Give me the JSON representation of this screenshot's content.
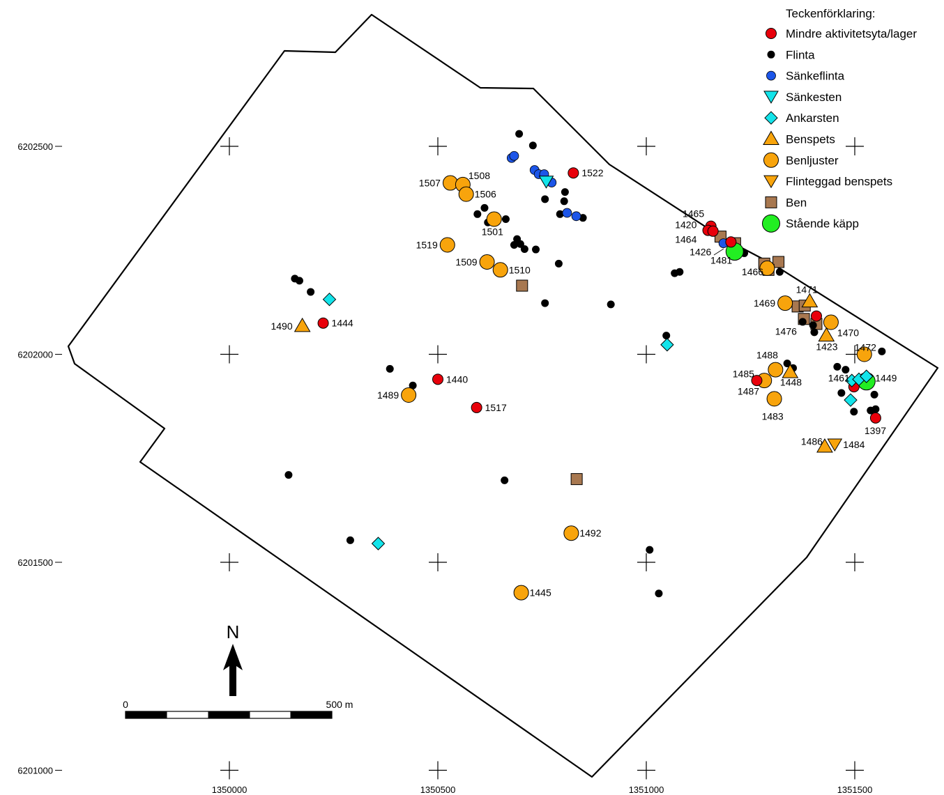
{
  "legend": {
    "title": "Teckenförklaring:",
    "items": [
      {
        "key": "aktivitet",
        "label": "Mindre aktivitetsyta/lager",
        "symbol": "circle",
        "color": "#e8000b"
      },
      {
        "key": "flinta",
        "label": "Flinta",
        "symbol": "dot",
        "color": "#000000"
      },
      {
        "key": "sankeflinta",
        "label": "Sänkeflinta",
        "symbol": "circle-small",
        "color": "#1c55e8"
      },
      {
        "key": "sankesten",
        "label": "Sänkesten",
        "symbol": "triangle-down",
        "color": "#13e4ea"
      },
      {
        "key": "ankarsten",
        "label": "Ankarsten",
        "symbol": "diamond",
        "color": "#13e4ea"
      },
      {
        "key": "benspets",
        "label": "Benspets",
        "symbol": "triangle-up",
        "color": "#f8a40c"
      },
      {
        "key": "benljuster",
        "label": "Benljuster",
        "symbol": "circle-large",
        "color": "#f8a40c"
      },
      {
        "key": "flinteggad",
        "label": "Flinteggad benspets",
        "symbol": "triangle-down",
        "color": "#f8a40c"
      },
      {
        "key": "ben",
        "label": "Ben",
        "symbol": "square",
        "color": "#a87850"
      },
      {
        "key": "kapp",
        "label": "Stående käpp",
        "symbol": "circle-xl",
        "color": "#22ee22"
      }
    ]
  },
  "axes": {
    "x_ticks": [
      "1350000",
      "1350500",
      "1351000",
      "1351500"
    ],
    "y_ticks": [
      "6202500",
      "6202000",
      "6201500",
      "6201000"
    ]
  },
  "north_arrow": {
    "label": "N"
  },
  "scale_bar": {
    "start_label": "0",
    "end_label": "500 m"
  },
  "features": [
    {
      "type": "aktivitet",
      "x": 1350825,
      "y": 6202436,
      "label": "1522"
    },
    {
      "type": "aktivitet",
      "x": 1351155,
      "y": 6202308
    },
    {
      "type": "aktivitet",
      "x": 1351148,
      "y": 6202298
    },
    {
      "type": "aktivitet",
      "x": 1351160,
      "y": 6202296
    },
    {
      "type": "aktivitet",
      "x": 1351203,
      "y": 6202270
    },
    {
      "type": "aktivitet",
      "x": 1350225,
      "y": 6202075,
      "label": "1444"
    },
    {
      "type": "aktivitet",
      "x": 1350500,
      "y": 6201940,
      "label": "1440"
    },
    {
      "type": "aktivitet",
      "x": 1350593,
      "y": 6201872,
      "label": "1517"
    },
    {
      "type": "aktivitet",
      "x": 1351265,
      "y": 6201937
    },
    {
      "type": "aktivitet",
      "x": 1351408,
      "y": 6202092
    },
    {
      "type": "aktivitet",
      "x": 1351498,
      "y": 6201922
    },
    {
      "type": "aktivitet",
      "x": 1351550,
      "y": 6201847,
      "label": "1397"
    },
    {
      "type": "flinta",
      "x": 1350695,
      "y": 6202530
    },
    {
      "type": "flinta",
      "x": 1350728,
      "y": 6202502
    },
    {
      "type": "flinta",
      "x": 1350805,
      "y": 6202390
    },
    {
      "type": "flinta",
      "x": 1350757,
      "y": 6202373
    },
    {
      "type": "flinta",
      "x": 1350803,
      "y": 6202368
    },
    {
      "type": "flinta",
      "x": 1350793,
      "y": 6202337
    },
    {
      "type": "flinta",
      "x": 1350848,
      "y": 6202328
    },
    {
      "type": "flinta",
      "x": 1350612,
      "y": 6202352
    },
    {
      "type": "flinta",
      "x": 1350595,
      "y": 6202337
    },
    {
      "type": "flinta",
      "x": 1350620,
      "y": 6202317
    },
    {
      "type": "flinta",
      "x": 1350663,
      "y": 6202325
    },
    {
      "type": "flinta",
      "x": 1350690,
      "y": 6202277
    },
    {
      "type": "flinta",
      "x": 1350683,
      "y": 6202263
    },
    {
      "type": "flinta",
      "x": 1350698,
      "y": 6202265
    },
    {
      "type": "flinta",
      "x": 1350708,
      "y": 6202253
    },
    {
      "type": "flinta",
      "x": 1350735,
      "y": 6202252
    },
    {
      "type": "flinta",
      "x": 1350790,
      "y": 6202218
    },
    {
      "type": "flinta",
      "x": 1350757,
      "y": 6202123
    },
    {
      "type": "flinta",
      "x": 1350915,
      "y": 6202120
    },
    {
      "type": "flinta",
      "x": 1351068,
      "y": 6202195
    },
    {
      "type": "flinta",
      "x": 1351080,
      "y": 6202198
    },
    {
      "type": "flinta",
      "x": 1350157,
      "y": 6202182
    },
    {
      "type": "flinta",
      "x": 1350168,
      "y": 6202177
    },
    {
      "type": "flinta",
      "x": 1350195,
      "y": 6202150
    },
    {
      "type": "flinta",
      "x": 1350385,
      "y": 6201965
    },
    {
      "type": "flinta",
      "x": 1350440,
      "y": 6201925
    },
    {
      "type": "flinta",
      "x": 1351048,
      "y": 6202045
    },
    {
      "type": "flinta",
      "x": 1351215,
      "y": 6202250
    },
    {
      "type": "flinta",
      "x": 1351235,
      "y": 6202243
    },
    {
      "type": "flinta",
      "x": 1351320,
      "y": 6202198
    },
    {
      "type": "flinta",
      "x": 1351375,
      "y": 6202078
    },
    {
      "type": "flinta",
      "x": 1351400,
      "y": 6202070
    },
    {
      "type": "flinta",
      "x": 1351403,
      "y": 6202053
    },
    {
      "type": "flinta",
      "x": 1351338,
      "y": 6201978
    },
    {
      "type": "flinta",
      "x": 1351352,
      "y": 6201967
    },
    {
      "type": "flinta",
      "x": 1351458,
      "y": 6201970
    },
    {
      "type": "flinta",
      "x": 1351478,
      "y": 6201963
    },
    {
      "type": "flinta",
      "x": 1351468,
      "y": 6201907
    },
    {
      "type": "flinta",
      "x": 1351547,
      "y": 6201903
    },
    {
      "type": "flinta",
      "x": 1351498,
      "y": 6201862
    },
    {
      "type": "flinta",
      "x": 1351538,
      "y": 6201865
    },
    {
      "type": "flinta",
      "x": 1351550,
      "y": 6201868
    },
    {
      "type": "flinta",
      "x": 1351565,
      "y": 6202007
    },
    {
      "type": "flinta",
      "x": 1350142,
      "y": 6201710
    },
    {
      "type": "flinta",
      "x": 1350660,
      "y": 6201697
    },
    {
      "type": "flinta",
      "x": 1350290,
      "y": 6201553
    },
    {
      "type": "flinta",
      "x": 1351008,
      "y": 6201530
    },
    {
      "type": "flinta",
      "x": 1351030,
      "y": 6201425
    },
    {
      "type": "sankeflinta",
      "x": 1350677,
      "y": 6202472
    },
    {
      "type": "sankeflinta",
      "x": 1350683,
      "y": 6202477
    },
    {
      "type": "sankeflinta",
      "x": 1350732,
      "y": 6202443
    },
    {
      "type": "sankeflinta",
      "x": 1350742,
      "y": 6202433
    },
    {
      "type": "sankeflinta",
      "x": 1350755,
      "y": 6202433
    },
    {
      "type": "sankeflinta",
      "x": 1350773,
      "y": 6202413
    },
    {
      "type": "sankeflinta",
      "x": 1350810,
      "y": 6202340
    },
    {
      "type": "sankeflinta",
      "x": 1350832,
      "y": 6202332
    },
    {
      "type": "sankeflinta",
      "x": 1351185,
      "y": 6202267
    },
    {
      "type": "sankesten",
      "x": 1350760,
      "y": 6202415
    },
    {
      "type": "ankarsten",
      "x": 1350240,
      "y": 6202132
    },
    {
      "type": "ankarsten",
      "x": 1351050,
      "y": 6202023
    },
    {
      "type": "ankarsten",
      "x": 1351493,
      "y": 6201937
    },
    {
      "type": "ankarsten",
      "x": 1351510,
      "y": 6201940
    },
    {
      "type": "ankarsten",
      "x": 1351528,
      "y": 6201947
    },
    {
      "type": "ankarsten",
      "x": 1351490,
      "y": 6201890
    },
    {
      "type": "ankarsten",
      "x": 1350357,
      "y": 6201545
    },
    {
      "type": "benspets",
      "x": 1350175,
      "y": 6202068,
      "label": "1490"
    },
    {
      "type": "benspets",
      "x": 1351392,
      "y": 6202127
    },
    {
      "type": "benspets",
      "x": 1351345,
      "y": 6201957
    },
    {
      "type": "benspets",
      "x": 1351432,
      "y": 6202045
    },
    {
      "type": "benspets",
      "x": 1351428,
      "y": 6201778
    },
    {
      "type": "benljuster",
      "x": 1350530,
      "y": 6202412,
      "label": "1507"
    },
    {
      "type": "benljuster",
      "x": 1350560,
      "y": 6202408,
      "label": "1508"
    },
    {
      "type": "benljuster",
      "x": 1350568,
      "y": 6202385,
      "label": "1506"
    },
    {
      "type": "benljuster",
      "x": 1350635,
      "y": 6202325,
      "label": "1501"
    },
    {
      "type": "benljuster",
      "x": 1350523,
      "y": 6202263,
      "label": "1519"
    },
    {
      "type": "benljuster",
      "x": 1350618,
      "y": 6202222,
      "label": "1509"
    },
    {
      "type": "benljuster",
      "x": 1350650,
      "y": 6202203,
      "label": "1510"
    },
    {
      "type": "benljuster",
      "x": 1350430,
      "y": 6201902,
      "label": "1489"
    },
    {
      "type": "benljuster",
      "x": 1351290,
      "y": 6202207
    },
    {
      "type": "benljuster",
      "x": 1351333,
      "y": 6202123,
      "label": "1469"
    },
    {
      "type": "benljuster",
      "x": 1351443,
      "y": 6202077,
      "label": "1470"
    },
    {
      "type": "benljuster",
      "x": 1351523,
      "y": 6202000,
      "label": "1472"
    },
    {
      "type": "benljuster",
      "x": 1351310,
      "y": 6201963
    },
    {
      "type": "benljuster",
      "x": 1351283,
      "y": 6201937
    },
    {
      "type": "benljuster",
      "x": 1351307,
      "y": 6201893,
      "label": "1483"
    },
    {
      "type": "benljuster",
      "x": 1350820,
      "y": 6201570,
      "label": "1492"
    },
    {
      "type": "benljuster",
      "x": 1350700,
      "y": 6201427,
      "label": "1445"
    },
    {
      "type": "flinteggad",
      "x": 1351452,
      "y": 6201783,
      "label": "1484"
    },
    {
      "type": "ben",
      "x": 1351178,
      "y": 6202283
    },
    {
      "type": "ben",
      "x": 1351213,
      "y": 6202267
    },
    {
      "type": "ben",
      "x": 1351283,
      "y": 6202218
    },
    {
      "type": "ben",
      "x": 1351317,
      "y": 6202222
    },
    {
      "type": "ben",
      "x": 1351293,
      "y": 6202203
    },
    {
      "type": "ben",
      "x": 1351363,
      "y": 6202115
    },
    {
      "type": "ben",
      "x": 1351380,
      "y": 6202117
    },
    {
      "type": "ben",
      "x": 1351378,
      "y": 6202085
    },
    {
      "type": "ben",
      "x": 1351408,
      "y": 6202073
    },
    {
      "type": "ben",
      "x": 1350702,
      "y": 6202165
    },
    {
      "type": "ben",
      "x": 1350833,
      "y": 6201700
    },
    {
      "type": "kapp",
      "x": 1351212,
      "y": 6202247
    },
    {
      "type": "kapp",
      "x": 1351528,
      "y": 6201935
    }
  ],
  "annotations": [
    {
      "text": "1465",
      "x": 1351113,
      "y": 6202330
    },
    {
      "text": "1420",
      "x": 1351095,
      "y": 6202303
    },
    {
      "text": "1464",
      "x": 1351095,
      "y": 6202268
    },
    {
      "text": "1426",
      "x": 1351130,
      "y": 6202238
    },
    {
      "text": "1481",
      "x": 1351180,
      "y": 6202218
    },
    {
      "text": "1466",
      "x": 1351255,
      "y": 6202190
    },
    {
      "text": "1471",
      "x": 1351385,
      "y": 6202147
    },
    {
      "text": "1476",
      "x": 1351335,
      "y": 6202047
    },
    {
      "text": "1423",
      "x": 1351433,
      "y": 6202010
    },
    {
      "text": "1488",
      "x": 1351290,
      "y": 6201990
    },
    {
      "text": "1485",
      "x": 1351233,
      "y": 6201945
    },
    {
      "text": "1487",
      "x": 1351245,
      "y": 6201903
    },
    {
      "text": "1448",
      "x": 1351347,
      "y": 6201925
    },
    {
      "text": "1461",
      "x": 1351462,
      "y": 6201935
    },
    {
      "text": "1449",
      "x": 1351575,
      "y": 6201935
    },
    {
      "text": "1486",
      "x": 1351397,
      "y": 6201782
    }
  ]
}
